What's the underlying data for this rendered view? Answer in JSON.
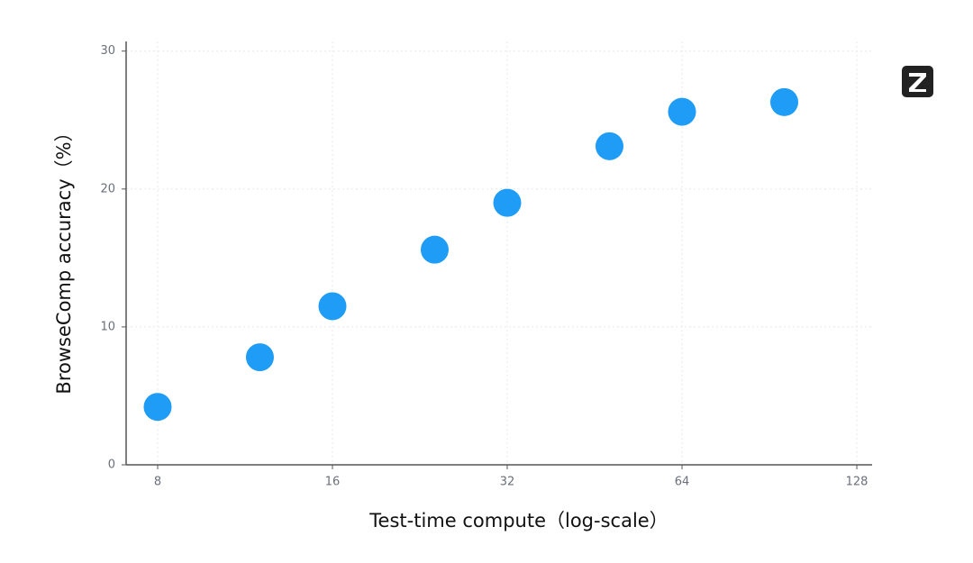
{
  "chart_data": {
    "type": "scatter",
    "xlabel": "Test-time compute（log-scale）",
    "ylabel": "BrowseComp accuracy（%）",
    "x": [
      8,
      12,
      16,
      24,
      32,
      48,
      64,
      96
    ],
    "series": [
      {
        "color": "#1e9cf6",
        "values": [
          4.2,
          7.8,
          11.5,
          15.6,
          19.0,
          23.1,
          25.6,
          26.3
        ]
      }
    ],
    "xscale": "log",
    "xlim": [
      7.06,
      136
    ],
    "xticks": [
      8,
      16,
      32,
      64,
      128
    ],
    "ylim": [
      0,
      30.7
    ],
    "yticks": [
      0,
      10,
      20,
      30
    ],
    "grid": true
  }
}
